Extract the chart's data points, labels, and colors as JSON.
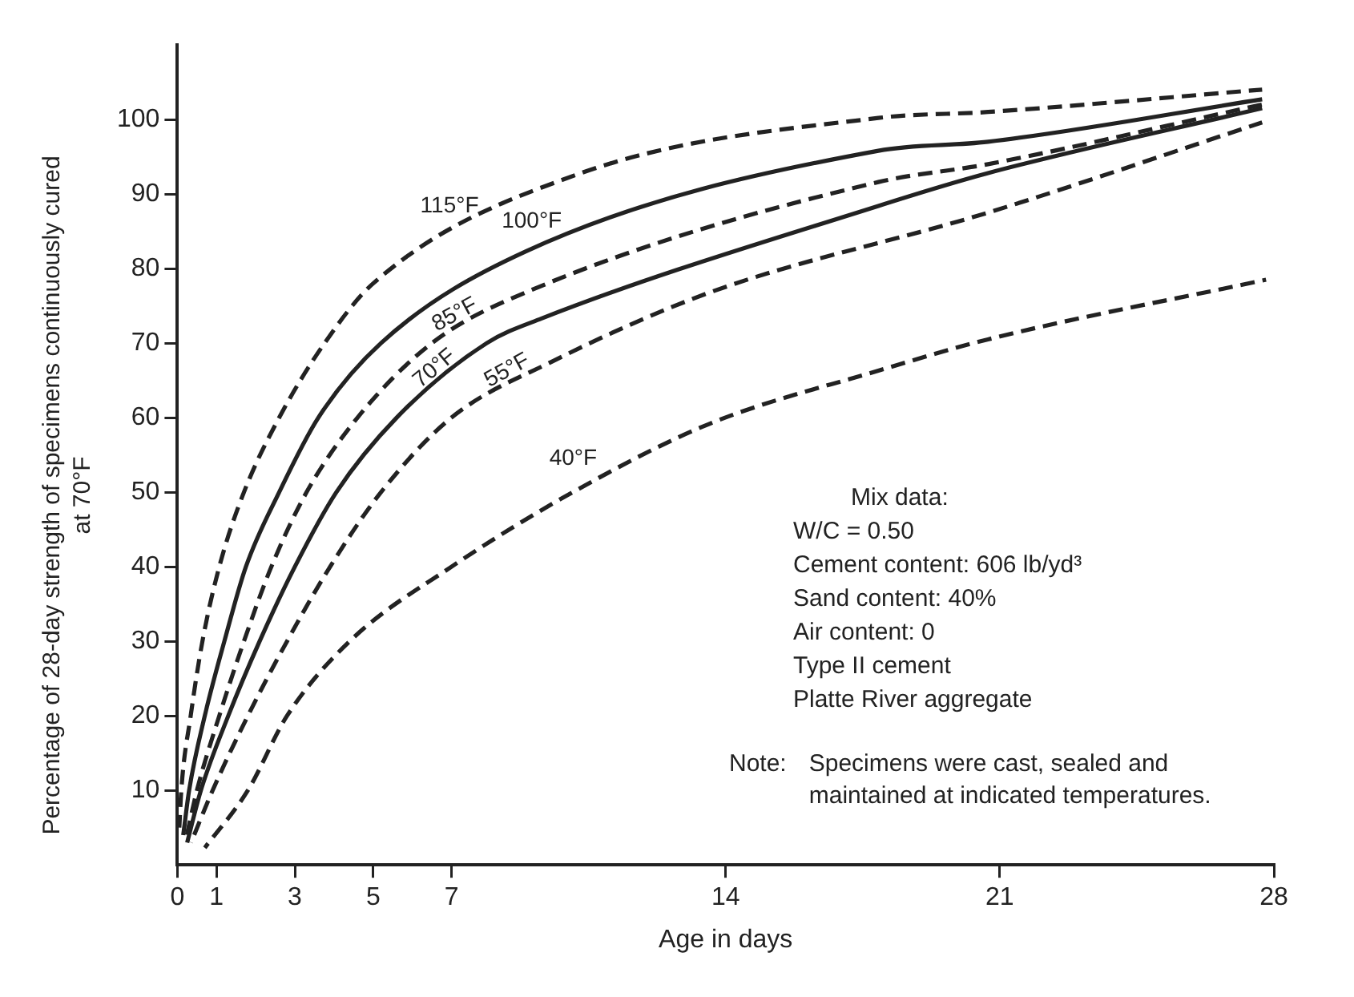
{
  "chart_data": {
    "type": "line",
    "xlabel": "Age in days",
    "ylabel": "Percentage of 28-day strength of specimens continuously cured at 70°F",
    "xlim": [
      0,
      28
    ],
    "ylim": [
      0,
      110
    ],
    "xticks": [
      0,
      1,
      3,
      5,
      7,
      14,
      21,
      28
    ],
    "yticks": [
      10,
      20,
      30,
      40,
      50,
      60,
      70,
      80,
      90,
      100
    ],
    "grid": false,
    "legend": false,
    "marker": "none",
    "annotations": [
      "Mix data:",
      "W/C = 0.50",
      "Cement content: 606 lb/yd³",
      "Sand content: 40%",
      "Air content: 0",
      "Type II cement",
      "Platte River aggregate",
      "Note:",
      "Specimens were cast, sealed and maintained at indicated temperatures."
    ],
    "series": [
      {
        "name": "115°F",
        "color": "#222222",
        "line_style": "dashed",
        "x": [
          0.05,
          0.1,
          0.34,
          0.64,
          1.07,
          1.7,
          2.6,
          3.76,
          5.0,
          10.2,
          17.9,
          20.7,
          27.7
        ],
        "values": [
          5,
          10,
          20,
          30,
          40,
          50,
          60,
          70,
          78,
          92.6,
          100.2,
          101,
          104
        ]
      },
      {
        "name": "100°F",
        "color": "#222222",
        "line_style": "solid",
        "x": [
          0.15,
          0.3,
          0.7,
          1.2,
          1.75,
          2.6,
          3.6,
          5.2,
          8.9,
          17.9,
          20.7,
          27.7
        ],
        "values": [
          4,
          10,
          20,
          30,
          40,
          50,
          60,
          70,
          82.3,
          95.8,
          97,
          102.7
        ]
      },
      {
        "name": "85°F",
        "color": "#222222",
        "line_style": "dashed",
        "x": [
          0.2,
          0.5,
          1.07,
          1.7,
          2.4,
          3.3,
          4.6,
          6.5,
          8.9,
          17.9,
          20.7,
          27.7
        ],
        "values": [
          3,
          10,
          20,
          30,
          40,
          50,
          60,
          70,
          76.8,
          91.6,
          94,
          102
        ]
      },
      {
        "name": "70°F",
        "color": "#222222",
        "line_style": "solid",
        "x": [
          0.25,
          0.6,
          1.3,
          2.1,
          3.0,
          4.06,
          5.6,
          7.9,
          9.3,
          17.9,
          20.7,
          27.7
        ],
        "values": [
          3,
          10,
          20,
          30,
          40,
          50,
          60,
          70,
          73.3,
          88.4,
          92.8,
          101.5
        ]
      },
      {
        "name": "55°F",
        "color": "#222222",
        "line_style": "dashed",
        "x": [
          0.35,
          0.9,
          1.8,
          2.8,
          3.9,
          5.2,
          7.0,
          9.6,
          13.6,
          20.7,
          27.7
        ],
        "values": [
          3,
          10,
          20,
          30,
          40,
          50,
          60,
          67.6,
          76.8,
          87.5,
          99.6
        ]
      },
      {
        "name": "40°F",
        "color": "#222222",
        "line_style": "dashed",
        "x": [
          0.7,
          1.8,
          2.8,
          4.4,
          7.0,
          10.2,
          13.6,
          17.9,
          20.7,
          27.8
        ],
        "values": [
          2.3,
          10,
          20,
          30,
          40,
          50.3,
          59.2,
          66.3,
          70.5,
          78.5
        ]
      }
    ]
  }
}
